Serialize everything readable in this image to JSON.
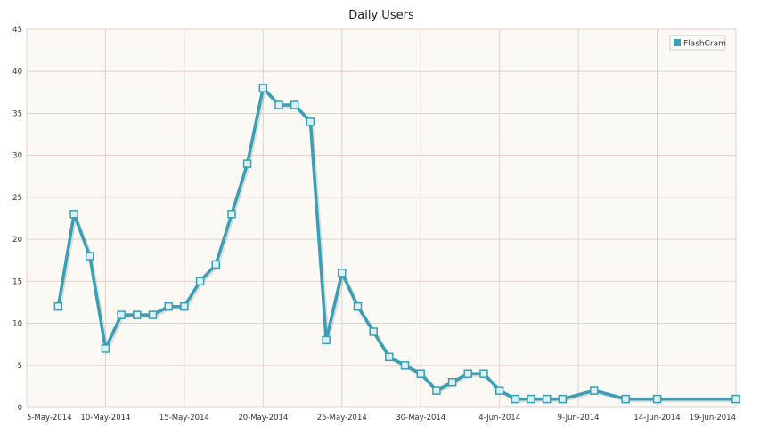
{
  "chart_data": {
    "type": "line",
    "title": "Daily Users",
    "xlabel": "",
    "ylabel": "",
    "x_ticks": [
      "5-May-2014",
      "10-May-2014",
      "15-May-2014",
      "20-May-2014",
      "25-May-2014",
      "30-May-2014",
      "4-Jun-2014",
      "9-Jun-2014",
      "14-Jun-2014",
      "19-Jun-2014"
    ],
    "x_range": [
      "2014-05-05",
      "2014-06-19"
    ],
    "ylim": [
      0,
      45
    ],
    "y_ticks": [
      0,
      5,
      10,
      15,
      20,
      25,
      30,
      35,
      40,
      45
    ],
    "grid": true,
    "legend_position": "top-right",
    "series": [
      {
        "name": "FlashCram",
        "color": "#3a9fb5",
        "points": [
          {
            "x": "2014-05-07",
            "y": 12
          },
          {
            "x": "2014-05-08",
            "y": 23
          },
          {
            "x": "2014-05-09",
            "y": 18
          },
          {
            "x": "2014-05-10",
            "y": 7
          },
          {
            "x": "2014-05-11",
            "y": 11
          },
          {
            "x": "2014-05-12",
            "y": 11
          },
          {
            "x": "2014-05-13",
            "y": 11
          },
          {
            "x": "2014-05-14",
            "y": 12
          },
          {
            "x": "2014-05-15",
            "y": 12
          },
          {
            "x": "2014-05-16",
            "y": 15
          },
          {
            "x": "2014-05-17",
            "y": 17
          },
          {
            "x": "2014-05-18",
            "y": 23
          },
          {
            "x": "2014-05-19",
            "y": 29
          },
          {
            "x": "2014-05-20",
            "y": 38
          },
          {
            "x": "2014-05-21",
            "y": 36
          },
          {
            "x": "2014-05-22",
            "y": 36
          },
          {
            "x": "2014-05-23",
            "y": 34
          },
          {
            "x": "2014-05-24",
            "y": 8
          },
          {
            "x": "2014-05-25",
            "y": 16
          },
          {
            "x": "2014-05-26",
            "y": 12
          },
          {
            "x": "2014-05-27",
            "y": 9
          },
          {
            "x": "2014-05-28",
            "y": 6
          },
          {
            "x": "2014-05-29",
            "y": 5
          },
          {
            "x": "2014-05-30",
            "y": 4
          },
          {
            "x": "2014-05-31",
            "y": 2
          },
          {
            "x": "2014-06-01",
            "y": 3
          },
          {
            "x": "2014-06-02",
            "y": 4
          },
          {
            "x": "2014-06-03",
            "y": 4
          },
          {
            "x": "2014-06-04",
            "y": 2
          },
          {
            "x": "2014-06-05",
            "y": 1
          },
          {
            "x": "2014-06-06",
            "y": 1
          },
          {
            "x": "2014-06-07",
            "y": 1
          },
          {
            "x": "2014-06-08",
            "y": 1
          },
          {
            "x": "2014-06-10",
            "y": 2
          },
          {
            "x": "2014-06-12",
            "y": 1
          },
          {
            "x": "2014-06-14",
            "y": 1
          },
          {
            "x": "2014-06-19",
            "y": 1
          }
        ]
      }
    ]
  }
}
